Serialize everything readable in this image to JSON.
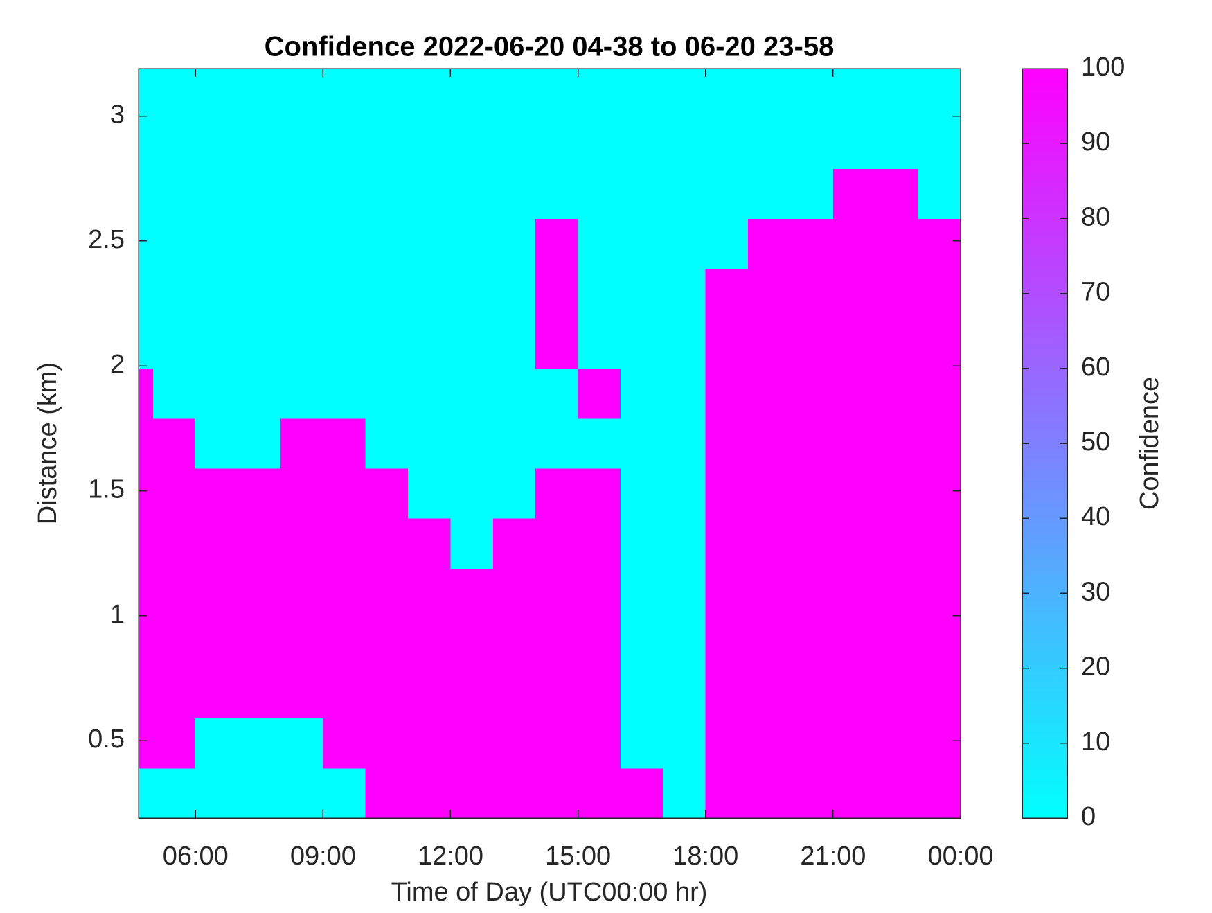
{
  "chart_data": {
    "type": "heatmap",
    "title": "Confidence 2022-06-20 04-38 to 06-20 23-58",
    "x_label": "Time of Day (UTC00:00 hr)",
    "y_label": "Distance (km)",
    "colorbar_label": "Confidence",
    "x": [
      4.66,
      5,
      6,
      7,
      8,
      9,
      10,
      11,
      12,
      13,
      14,
      15,
      16,
      17,
      18,
      19,
      20,
      21,
      22,
      23,
      24
    ],
    "y": [
      0.19,
      0.39,
      0.59,
      0.79,
      0.99,
      1.19,
      1.39,
      1.59,
      1.79,
      1.99,
      2.19,
      2.39,
      2.59,
      2.79,
      2.99,
      3.19
    ],
    "z": [
      [
        0,
        0,
        0,
        0,
        0,
        0,
        100,
        100,
        100,
        100,
        100,
        100,
        100,
        0,
        100,
        100,
        100,
        100,
        100,
        100
      ],
      [
        100,
        100,
        0,
        0,
        0,
        100,
        100,
        100,
        100,
        100,
        100,
        100,
        0,
        0,
        100,
        100,
        100,
        100,
        100,
        100
      ],
      [
        100,
        100,
        100,
        100,
        100,
        100,
        100,
        100,
        100,
        100,
        100,
        100,
        0,
        0,
        100,
        100,
        100,
        100,
        100,
        100
      ],
      [
        100,
        100,
        100,
        100,
        100,
        100,
        100,
        100,
        100,
        100,
        100,
        100,
        0,
        0,
        100,
        100,
        100,
        100,
        100,
        100
      ],
      [
        100,
        100,
        100,
        100,
        100,
        100,
        100,
        100,
        100,
        100,
        100,
        100,
        0,
        0,
        100,
        100,
        100,
        100,
        100,
        100
      ],
      [
        100,
        100,
        100,
        100,
        100,
        100,
        100,
        100,
        0,
        100,
        100,
        100,
        0,
        0,
        100,
        100,
        100,
        100,
        100,
        100
      ],
      [
        100,
        100,
        100,
        100,
        100,
        100,
        100,
        0,
        0,
        0,
        100,
        100,
        0,
        0,
        100,
        100,
        100,
        100,
        100,
        100
      ],
      [
        100,
        100,
        0,
        0,
        100,
        100,
        0,
        0,
        0,
        0,
        0,
        0,
        0,
        0,
        100,
        100,
        100,
        100,
        100,
        100
      ],
      [
        100,
        0,
        0,
        0,
        0,
        0,
        0,
        0,
        0,
        0,
        0,
        100,
        0,
        0,
        100,
        100,
        100,
        100,
        100,
        100
      ],
      [
        0,
        0,
        0,
        0,
        0,
        0,
        0,
        0,
        0,
        0,
        100,
        0,
        0,
        0,
        100,
        100,
        100,
        100,
        100,
        100
      ],
      [
        0,
        0,
        0,
        0,
        0,
        0,
        0,
        0,
        0,
        0,
        100,
        0,
        0,
        0,
        100,
        100,
        100,
        100,
        100,
        100
      ],
      [
        0,
        0,
        0,
        0,
        0,
        0,
        0,
        0,
        0,
        0,
        100,
        0,
        0,
        0,
        0,
        100,
        100,
        100,
        100,
        100
      ],
      [
        0,
        0,
        0,
        0,
        0,
        0,
        0,
        0,
        0,
        0,
        0,
        0,
        0,
        0,
        0,
        0,
        0,
        100,
        100,
        0
      ],
      [
        0,
        0,
        0,
        0,
        0,
        0,
        0,
        0,
        0,
        0,
        0,
        0,
        0,
        0,
        0,
        0,
        0,
        0,
        0,
        0
      ],
      [
        0,
        0,
        0,
        0,
        0,
        0,
        0,
        0,
        0,
        0,
        0,
        0,
        0,
        0,
        0,
        0,
        0,
        0,
        0,
        0
      ]
    ],
    "colormap": [
      "#00ffff",
      "#ff00ff"
    ],
    "clim": [
      0,
      100
    ],
    "cticks": [
      0,
      10,
      20,
      30,
      40,
      50,
      60,
      70,
      80,
      90,
      100
    ],
    "xlim": [
      4.66,
      24
    ],
    "xticks": [
      {
        "value": 6,
        "label": "06:00"
      },
      {
        "value": 9,
        "label": "09:00"
      },
      {
        "value": 12,
        "label": "12:00"
      },
      {
        "value": 15,
        "label": "15:00"
      },
      {
        "value": 18,
        "label": "18:00"
      },
      {
        "value": 21,
        "label": "21:00"
      },
      {
        "value": 24,
        "label": "00:00"
      }
    ],
    "ylim": [
      0.19,
      3.19
    ],
    "yticks": [
      0.5,
      1,
      1.5,
      2,
      2.5,
      3
    ]
  }
}
